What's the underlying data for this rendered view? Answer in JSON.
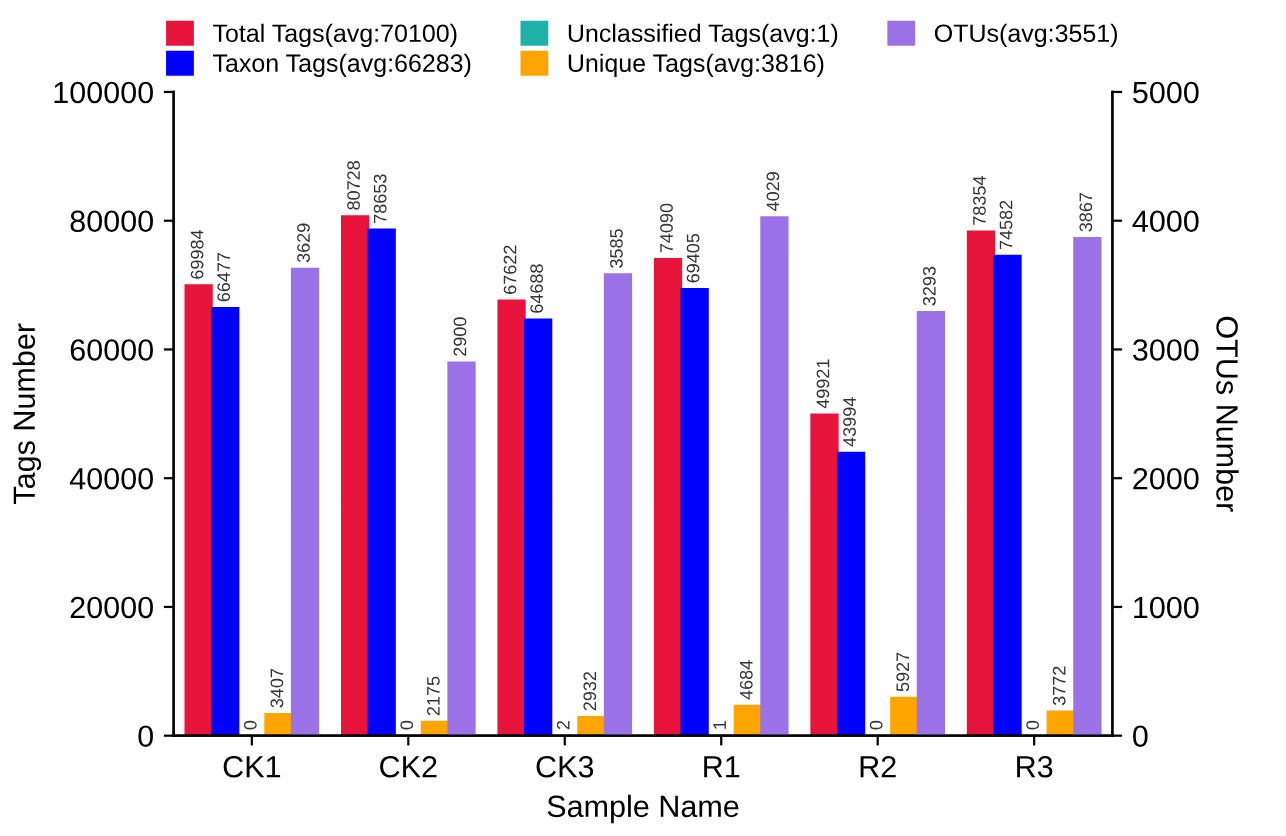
{
  "chart_data": {
    "type": "bar",
    "xlabel": "Sample Name",
    "ylabel": "Tags Number",
    "y2label": "OTUs Number",
    "categories": [
      "CK1",
      "CK2",
      "CK3",
      "R1",
      "R2",
      "R3"
    ],
    "series": [
      {
        "name": "Total Tags(avg:70100)",
        "color": "#e8143c",
        "values": [
          69984,
          80728,
          67622,
          74090,
          49921,
          78354
        ]
      },
      {
        "name": "Taxon Tags(avg:66283)",
        "color": "#0000ff",
        "values": [
          66477,
          78653,
          64688,
          69405,
          43994,
          74582
        ]
      },
      {
        "name": "Unclassified Tags(avg:1)",
        "color": "#20b2aa",
        "values": [
          0,
          0,
          2,
          1,
          0,
          0
        ]
      },
      {
        "name": "Unique Tags(avg:3816)",
        "color": "#ffa500",
        "values": [
          3407,
          2175,
          2932,
          4684,
          5927,
          3772
        ]
      },
      {
        "name": "OTUs(avg:3551)",
        "color": "#9b72e8",
        "axis": "y2",
        "values": [
          3629,
          2900,
          3585,
          4029,
          3293,
          3867
        ]
      }
    ],
    "ylim": [
      0,
      100000
    ],
    "yticks": [
      0,
      20000,
      40000,
      60000,
      80000,
      100000
    ],
    "y2lim": [
      0,
      5000
    ],
    "y2ticks": [
      0,
      1000,
      2000,
      3000,
      4000,
      5000
    ],
    "data_labels": true,
    "grid": false,
    "legend": "top"
  }
}
